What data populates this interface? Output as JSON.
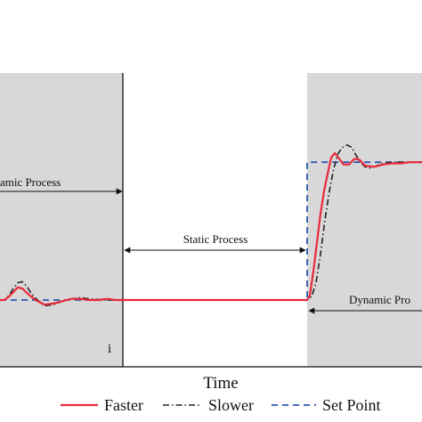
{
  "chart_data": {
    "type": "line",
    "xlabel": "Time",
    "ylabel": "",
    "xlim": [
      0,
      474
    ],
    "ylim": [
      0,
      1.5
    ],
    "grid": false,
    "legend_position": "bottom",
    "series": [
      {
        "name": "Faster",
        "color": "#e8293a",
        "style": "solid",
        "x": [
          0,
          5,
          10,
          15,
          20,
          25,
          32,
          40,
          50,
          60,
          70,
          80,
          90,
          100,
          110,
          120,
          130,
          140,
          200,
          250,
          300,
          345,
          348,
          352,
          356,
          360,
          364,
          368,
          372,
          376,
          380,
          386,
          392,
          398,
          404,
          410,
          420,
          430,
          440,
          450,
          460,
          474
        ],
        "y": [
          0.0,
          0.0,
          0.03,
          0.07,
          0.11,
          0.1,
          0.05,
          0.0,
          -0.04,
          -0.03,
          -0.01,
          0.01,
          0.01,
          0.0,
          0.0,
          0.01,
          0.0,
          0.0,
          0.0,
          0.0,
          0.0,
          0.0,
          0.04,
          0.25,
          0.5,
          0.75,
          0.95,
          1.1,
          1.24,
          1.28,
          1.24,
          1.18,
          1.18,
          1.23,
          1.22,
          1.17,
          1.16,
          1.18,
          1.19,
          1.19,
          1.2,
          1.2
        ]
      },
      {
        "name": "Slower",
        "color": "#222222",
        "style": "dashdot",
        "x": [
          0,
          5,
          10,
          15,
          20,
          25,
          30,
          35,
          42,
          50,
          60,
          70,
          80,
          90,
          100,
          120,
          140,
          200,
          250,
          300,
          345,
          350,
          355,
          360,
          365,
          370,
          375,
          380,
          385,
          390,
          395,
          400,
          405,
          410,
          415,
          420,
          430,
          440,
          450,
          460,
          474
        ],
        "y": [
          0.0,
          0.0,
          0.04,
          0.1,
          0.15,
          0.16,
          0.12,
          0.06,
          0.0,
          -0.05,
          -0.04,
          -0.01,
          0.01,
          0.02,
          0.01,
          0.0,
          0.0,
          0.0,
          0.0,
          0.0,
          0.0,
          0.03,
          0.15,
          0.4,
          0.7,
          0.95,
          1.15,
          1.28,
          1.33,
          1.35,
          1.33,
          1.26,
          1.2,
          1.16,
          1.15,
          1.16,
          1.19,
          1.2,
          1.2,
          1.2,
          1.2
        ]
      },
      {
        "name": "Set Point",
        "color": "#2f56b0",
        "style": "dashed",
        "x": [
          0,
          345,
          345,
          474
        ],
        "y": [
          0.0,
          0.0,
          1.2,
          1.2
        ]
      }
    ],
    "shaded_regions": [
      {
        "x0": 0,
        "x1": 138
      },
      {
        "x0": 345,
        "x1": 474
      }
    ],
    "vline_x": 138,
    "y_edge_label": "i",
    "annotations": [
      {
        "text": "amic Process",
        "arrow": "right"
      },
      {
        "text": "Static Process",
        "arrow": "both"
      },
      {
        "text": "Dynamic Pro",
        "arrow": "left"
      }
    ]
  },
  "colors": {
    "shade": "#d8d8d8",
    "axis": "#111111",
    "faster": "#e8293a",
    "slower": "#222222",
    "setpoint": "#2f56b0"
  }
}
